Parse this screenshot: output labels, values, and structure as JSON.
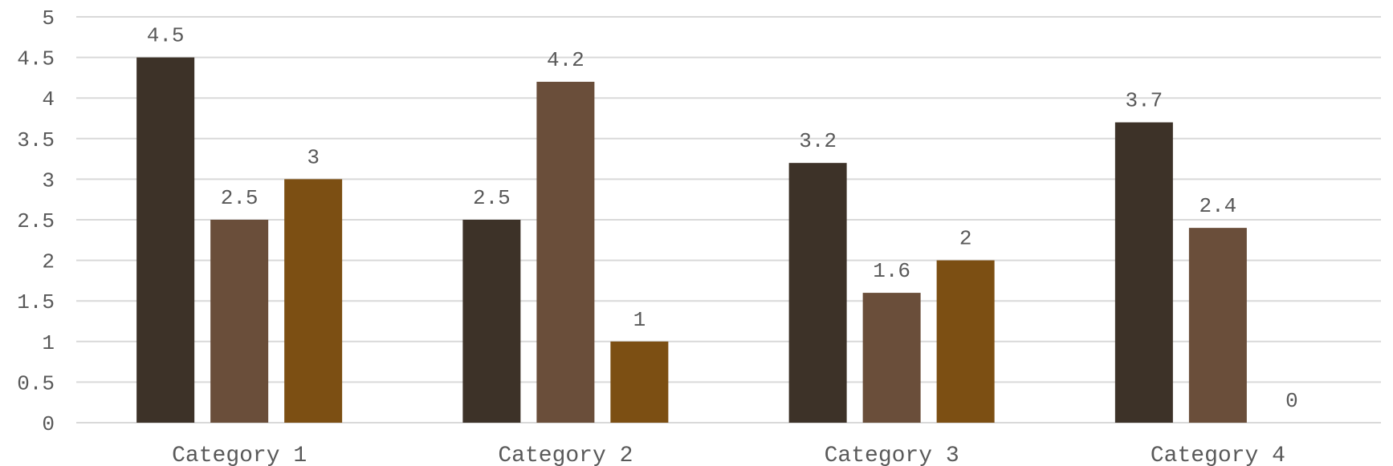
{
  "chart_data": {
    "type": "bar",
    "categories": [
      "Category 1",
      "Category 2",
      "Category 3",
      "Category 4"
    ],
    "series": [
      {
        "values": [
          4.5,
          2.5,
          3.2,
          3.7
        ],
        "color": "#3d3228"
      },
      {
        "values": [
          2.5,
          4.2,
          1.6,
          2.4
        ],
        "color": "#6a4e3a"
      },
      {
        "values": [
          3,
          1,
          2,
          0
        ],
        "color": "#7c4f13"
      }
    ],
    "ylim": [
      0,
      5
    ],
    "yticks": [
      0,
      0.5,
      1,
      1.5,
      2,
      2.5,
      3,
      3.5,
      4,
      4.5,
      5
    ],
    "grid": true,
    "legend": "none",
    "title": "",
    "xlabel": "",
    "ylabel": ""
  }
}
